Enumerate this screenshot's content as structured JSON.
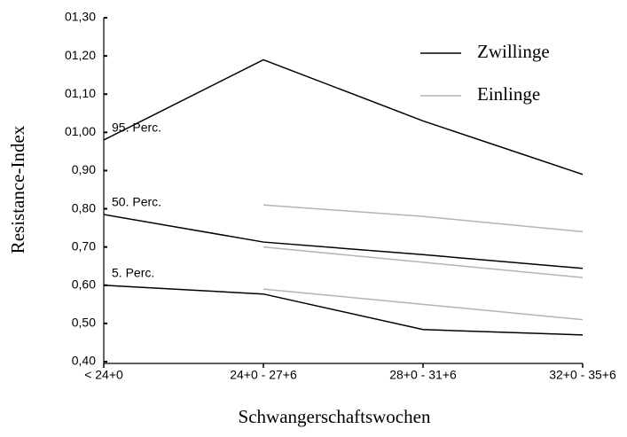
{
  "chart_data": {
    "type": "line",
    "x_label": "Schwangerschaftswochen",
    "y_label": "Resistance-Index",
    "categories": [
      "< 24+0",
      "24+0 - 27+6",
      "28+0 - 31+6",
      "32+0 - 35+6"
    ],
    "ylim": [
      0.4,
      1.3
    ],
    "yticks": [
      {
        "value": 0.4,
        "label": "0,40"
      },
      {
        "value": 0.5,
        "label": "0,50"
      },
      {
        "value": 0.6,
        "label": "0,60"
      },
      {
        "value": 0.7,
        "label": "0,70"
      },
      {
        "value": 0.8,
        "label": "0,80"
      },
      {
        "value": 0.9,
        "label": "0,90"
      },
      {
        "value": 1.0,
        "label": "01,00"
      },
      {
        "value": 1.1,
        "label": "01,10"
      },
      {
        "value": 1.2,
        "label": "01,20"
      },
      {
        "value": 1.3,
        "label": "01,30"
      }
    ],
    "series": [
      {
        "name": "Zwillinge",
        "color": "#000000",
        "lines": [
          {
            "label": "95. Perc.",
            "values": [
              0.98,
              1.19,
              1.03,
              0.89
            ]
          },
          {
            "label": "50. Perc.",
            "values": [
              0.785,
              0.713,
              0.68,
              0.644
            ]
          },
          {
            "label": "5. Perc.",
            "values": [
              0.6,
              0.577,
              0.484,
              0.47
            ]
          }
        ]
      },
      {
        "name": "Einlinge",
        "color": "#b4b4b4",
        "lines": [
          {
            "values": [
              null,
              0.81,
              0.78,
              0.74
            ]
          },
          {
            "values": [
              null,
              0.7,
              0.66,
              0.62
            ]
          },
          {
            "values": [
              null,
              0.59,
              0.55,
              0.51
            ]
          }
        ]
      }
    ]
  }
}
